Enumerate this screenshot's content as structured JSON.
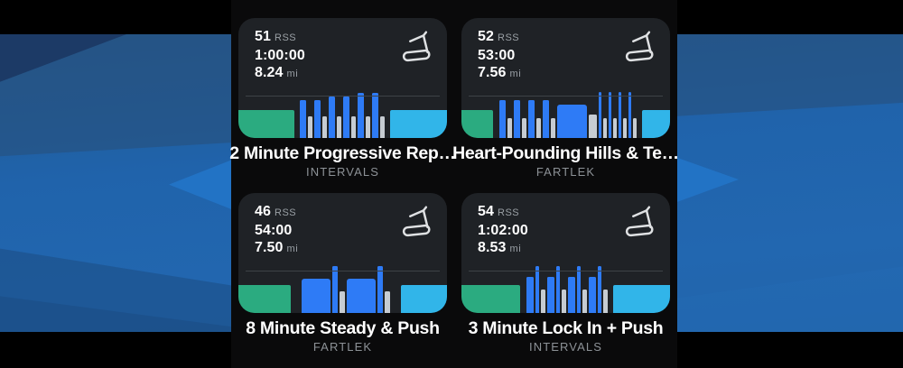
{
  "colors": {
    "warmup": "#2BAB80",
    "work": "#2E7BF6",
    "recovery": "#C6CCD2",
    "cooldown": "#31B5E9",
    "card_bg": "#1F2226",
    "banner_blue": "#2166AE",
    "accent_chevron": "#2274C8"
  },
  "cards": [
    {
      "rss_value": "51",
      "rss_label": "RSS",
      "duration": "1:00:00",
      "distance_value": "8.24",
      "distance_unit": "mi",
      "title": "2 Minute Progressive Rep…",
      "category": "INTERVALS",
      "icon": "treadmill-icon",
      "chart": {
        "type": "bar",
        "segments": [
          [
            "warmup",
            62,
            31
          ],
          [
            "work",
            7,
            42
          ],
          [
            "recovery",
            5,
            24
          ],
          [
            "work",
            7,
            42
          ],
          [
            "recovery",
            5,
            24
          ],
          [
            "work",
            7,
            46
          ],
          [
            "recovery",
            5,
            24
          ],
          [
            "work",
            7,
            46
          ],
          [
            "recovery",
            5,
            24
          ],
          [
            "work",
            7,
            50
          ],
          [
            "recovery",
            5,
            24
          ],
          [
            "work",
            7,
            50
          ],
          [
            "recovery",
            5,
            24
          ],
          [
            "cooldown",
            63,
            31
          ]
        ]
      }
    },
    {
      "rss_value": "52",
      "rss_label": "RSS",
      "duration": "53:00",
      "distance_value": "7.56",
      "distance_unit": "mi",
      "title": "Heart-Pounding Hills & Te…",
      "category": "FARTLEK",
      "icon": "treadmill-icon",
      "chart": {
        "type": "bar",
        "segments": [
          [
            "warmup",
            35,
            31
          ],
          [
            "work",
            7,
            42
          ],
          [
            "recovery",
            5,
            22
          ],
          [
            "work",
            7,
            42
          ],
          [
            "recovery",
            5,
            22
          ],
          [
            "work",
            7,
            42
          ],
          [
            "recovery",
            5,
            22
          ],
          [
            "work",
            7,
            42
          ],
          [
            "recovery",
            5,
            22
          ],
          [
            "work",
            33,
            37
          ],
          [
            "recovery",
            9,
            26
          ],
          [
            "work",
            3,
            51
          ],
          [
            "recovery",
            4,
            22
          ],
          [
            "work",
            3,
            51
          ],
          [
            "recovery",
            4,
            22
          ],
          [
            "work",
            3,
            51
          ],
          [
            "recovery",
            4,
            22
          ],
          [
            "work",
            3,
            51
          ],
          [
            "recovery",
            4,
            22
          ],
          [
            "cooldown",
            31,
            31
          ]
        ]
      }
    },
    {
      "rss_value": "46",
      "rss_label": "RSS",
      "duration": "54:00",
      "distance_value": "7.50",
      "distance_unit": "mi",
      "title": "8 Minute Steady & Push",
      "category": "FARTLEK",
      "icon": "treadmill-icon",
      "chart": {
        "type": "bar",
        "segments": [
          [
            "warmup",
            58,
            31
          ],
          [
            "work",
            32,
            38
          ],
          [
            "work",
            6,
            52
          ],
          [
            "recovery",
            6,
            24
          ],
          [
            "work",
            32,
            38
          ],
          [
            "work",
            6,
            52
          ],
          [
            "recovery",
            6,
            24
          ],
          [
            "cooldown",
            51,
            31
          ]
        ]
      }
    },
    {
      "rss_value": "54",
      "rss_label": "RSS",
      "duration": "1:02:00",
      "distance_value": "8.53",
      "distance_unit": "mi",
      "title": "3 Minute Lock In + Push",
      "category": "INTERVALS",
      "icon": "treadmill-icon",
      "chart": {
        "type": "bar",
        "segments": [
          [
            "warmup",
            65,
            31
          ],
          [
            "work",
            8,
            40
          ],
          [
            "work",
            4,
            52
          ],
          [
            "recovery",
            5,
            26
          ],
          [
            "work",
            8,
            40
          ],
          [
            "work",
            4,
            52
          ],
          [
            "recovery",
            5,
            26
          ],
          [
            "work",
            8,
            40
          ],
          [
            "work",
            4,
            52
          ],
          [
            "recovery",
            5,
            26
          ],
          [
            "work",
            8,
            40
          ],
          [
            "work",
            4,
            52
          ],
          [
            "recovery",
            5,
            26
          ],
          [
            "cooldown",
            63,
            31
          ]
        ]
      }
    }
  ]
}
